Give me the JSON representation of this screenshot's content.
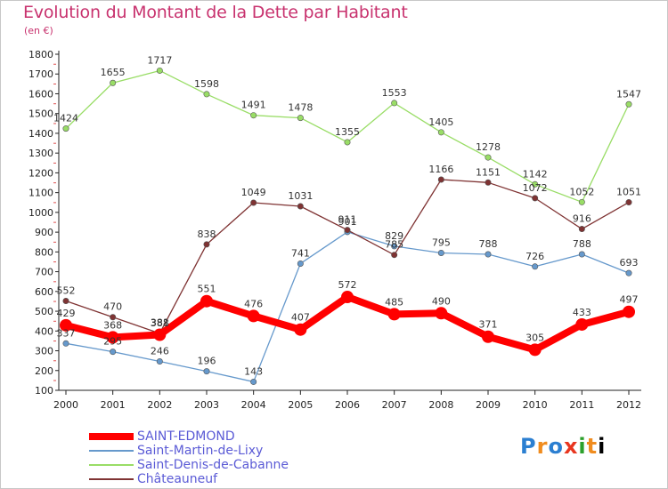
{
  "title": "Evolution du Montant de la Dette par Habitant",
  "subtitle": "(en €)",
  "logo": {
    "letters": [
      "P",
      "r",
      "o",
      "x",
      "i",
      "t",
      "i"
    ],
    "text": "Proxiti"
  },
  "chart_data": {
    "type": "line",
    "title": "Evolution du Montant de la Dette par Habitant",
    "ylabel": "(en €)",
    "ylim": [
      100,
      1800
    ],
    "ystep": 100,
    "grid": false,
    "legend": "bottom-left",
    "x": [
      "2000",
      "2001",
      "2002",
      "2003",
      "2004",
      "2005",
      "2006",
      "2007",
      "2008",
      "2009",
      "2010",
      "2011",
      "2012"
    ],
    "series": [
      {
        "name": "SAINT-EDMOND",
        "color": "#ff0000",
        "values": [
          429,
          368,
          381,
          551,
          476,
          407,
          572,
          485,
          490,
          371,
          305,
          433,
          497
        ]
      },
      {
        "name": "Saint-Martin-de-Lixy",
        "color": "#6699cc",
        "values": [
          337,
          295,
          246,
          196,
          143,
          741,
          901,
          829,
          795,
          788,
          726,
          788,
          693
        ]
      },
      {
        "name": "Saint-Denis-de-Cabanne",
        "color": "#99dd66",
        "values": [
          1424,
          1655,
          1717,
          1598,
          1491,
          1478,
          1355,
          1553,
          1405,
          1278,
          1142,
          1052,
          1547
        ]
      },
      {
        "name": "Châteauneuf",
        "color": "#7f3333",
        "values": [
          552,
          470,
          388,
          838,
          1049,
          1031,
          911,
          785,
          1166,
          1151,
          1072,
          916,
          1051
        ]
      }
    ]
  }
}
